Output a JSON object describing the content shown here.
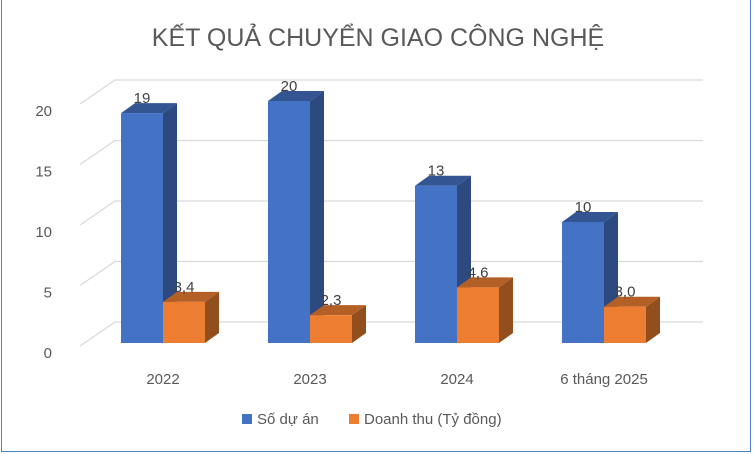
{
  "chart_data": {
    "type": "bar",
    "title": "KẾT QUẢ CHUYỂN GIAO CÔNG NGHỆ",
    "categories": [
      "2022",
      "2023",
      "2024",
      "6 tháng 2025"
    ],
    "series": [
      {
        "name": "Số dự án",
        "values": [
          19,
          20,
          13,
          10
        ],
        "labels": [
          "19",
          "20",
          "13",
          "10"
        ],
        "color": "#4472c4"
      },
      {
        "name": "Doanh thu (Tỷ đồng)",
        "values": [
          3.4,
          2.3,
          4.6,
          3.0
        ],
        "labels": [
          "3,4",
          "2,3",
          "4,6",
          "3,0"
        ],
        "color": "#ed7d31"
      }
    ],
    "yticks": [
      "0",
      "5",
      "10",
      "15",
      "20"
    ],
    "ylim": [
      0,
      20
    ],
    "grid": true,
    "legend": "bottom",
    "style": "3d-clustered-column"
  }
}
